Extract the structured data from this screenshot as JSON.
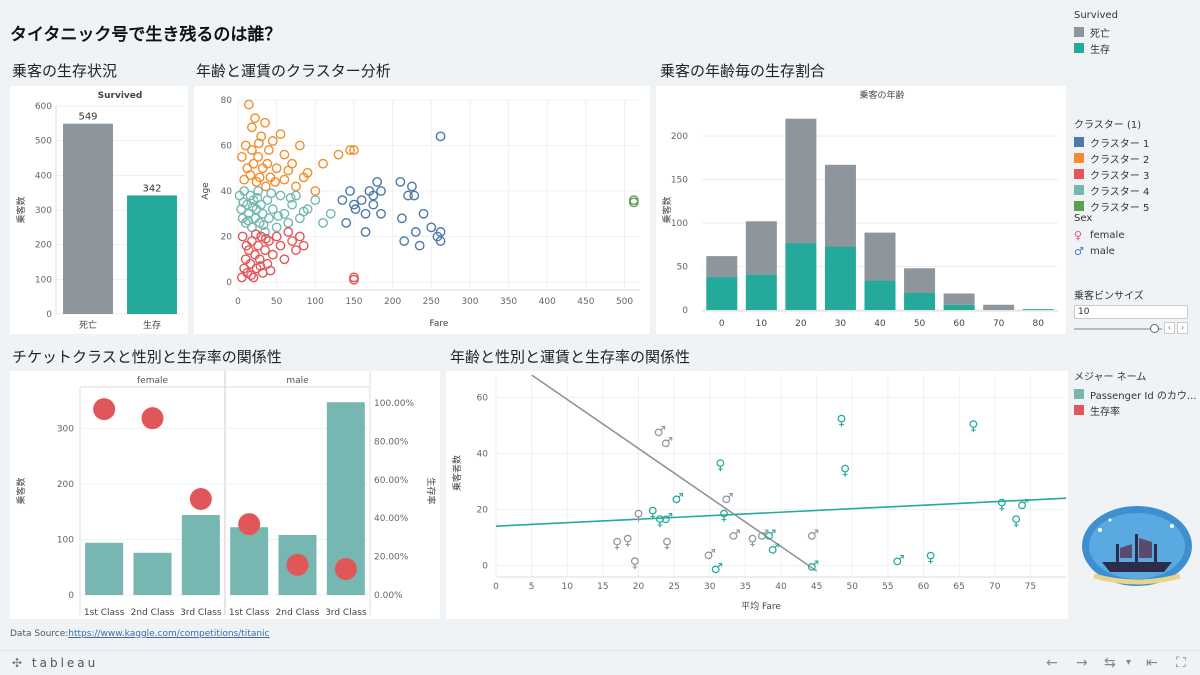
{
  "page_title": "タイタニック号で生き残るのは誰？",
  "sections": {
    "survival": "乗客の生存状況",
    "cluster": "年齢と運賃のクラスター分析",
    "agehist": "乗客の年齢毎の生存割合",
    "classsex": "チケットクラスと性別と生存率の関係性",
    "agefare": "年齢と性別と運賃と生存率の関係性"
  },
  "legends": {
    "survived": {
      "title": "Survived",
      "items": [
        {
          "label": "死亡",
          "color": "#8f959c"
        },
        {
          "label": "生存",
          "color": "#24a99b"
        }
      ]
    },
    "cluster": {
      "title": "クラスター (1)",
      "items": [
        {
          "label": "クラスター 1",
          "color": "#4e79a7"
        },
        {
          "label": "クラスター 2",
          "color": "#f28e2b"
        },
        {
          "label": "クラスター 3",
          "color": "#e15759"
        },
        {
          "label": "クラスター 4",
          "color": "#76b7b2"
        },
        {
          "label": "クラスター 5",
          "color": "#59a14f"
        }
      ]
    },
    "sex": {
      "title": "Sex",
      "items": [
        {
          "label": "female",
          "icon": "female-symbol-icon"
        },
        {
          "label": "male",
          "icon": "male-symbol-icon"
        }
      ]
    },
    "bin": {
      "title": "乗客ビンサイズ",
      "value": "10",
      "slider_fraction": 0.95
    },
    "measure": {
      "title": "メジャー ネーム",
      "items": [
        {
          "label": "Passenger Id のカウ...",
          "color": "#76b7b2"
        },
        {
          "label": "生存率",
          "color": "#e15759"
        }
      ]
    }
  },
  "footer": {
    "source_label": "Data Source:",
    "source_url": "https://www.kaggle.com/competitions/titanic",
    "logo": "tableau"
  },
  "chart_data": [
    {
      "id": "survival",
      "type": "bar",
      "title": "Survived",
      "ylabel": "乗客数",
      "categories": [
        "死亡",
        "生存"
      ],
      "values": [
        549,
        342
      ],
      "colors": [
        "#8f959c",
        "#24a99b"
      ],
      "ylim": [
        0,
        600
      ],
      "yticks": [
        0,
        100,
        200,
        300,
        400,
        500,
        600
      ]
    },
    {
      "id": "cluster",
      "type": "scatter",
      "xlabel": "Fare",
      "ylabel": "Age",
      "xlim": [
        0,
        520
      ],
      "ylim": [
        0,
        80
      ],
      "xticks": [
        0,
        50,
        100,
        150,
        200,
        250,
        300,
        350,
        400,
        450,
        500
      ],
      "yticks": [
        0,
        20,
        40,
        60,
        80
      ],
      "series": [
        {
          "color": "#f28e2b",
          "points": [
            [
              10,
              60
            ],
            [
              14,
              78
            ],
            [
              18,
              68
            ],
            [
              22,
              72
            ],
            [
              26,
              55
            ],
            [
              30,
              64
            ],
            [
              35,
              70
            ],
            [
              40,
              58
            ],
            [
              45,
              62
            ],
            [
              50,
              50
            ],
            [
              55,
              65
            ],
            [
              60,
              56
            ],
            [
              70,
              52
            ],
            [
              80,
              60
            ],
            [
              90,
              48
            ],
            [
              110,
              52
            ],
            [
              130,
              56
            ],
            [
              145,
              58
            ],
            [
              150,
              58
            ],
            [
              8,
              45
            ],
            [
              12,
              50
            ],
            [
              16,
              47
            ],
            [
              20,
              52
            ],
            [
              24,
              44
            ],
            [
              28,
              46
            ],
            [
              32,
              50
            ],
            [
              36,
              42
            ],
            [
              42,
              46
            ],
            [
              48,
              44
            ],
            [
              60,
              45
            ],
            [
              75,
              42
            ],
            [
              85,
              46
            ],
            [
              100,
              40
            ],
            [
              5,
              55
            ],
            [
              18,
              58
            ],
            [
              27,
              61
            ],
            [
              38,
              52
            ],
            [
              65,
              49
            ]
          ]
        },
        {
          "color": "#76b7b2",
          "points": [
            [
              2,
              38
            ],
            [
              4,
              32
            ],
            [
              6,
              28
            ],
            [
              8,
              40
            ],
            [
              10,
              26
            ],
            [
              12,
              34
            ],
            [
              14,
              30
            ],
            [
              16,
              38
            ],
            [
              18,
              24
            ],
            [
              20,
              36
            ],
            [
              22,
              28
            ],
            [
              24,
              32
            ],
            [
              26,
              40
            ],
            [
              28,
              26
            ],
            [
              30,
              34
            ],
            [
              32,
              30
            ],
            [
              35,
              22
            ],
            [
              38,
              36
            ],
            [
              40,
              28
            ],
            [
              45,
              32
            ],
            [
              50,
              24
            ],
            [
              55,
              38
            ],
            [
              60,
              30
            ],
            [
              65,
              26
            ],
            [
              70,
              34
            ],
            [
              75,
              38
            ],
            [
              80,
              28
            ],
            [
              90,
              32
            ],
            [
              100,
              36
            ],
            [
              110,
              26
            ],
            [
              120,
              30
            ],
            [
              7,
              35
            ],
            [
              13,
              27
            ],
            [
              19,
              33
            ],
            [
              25,
              37
            ],
            [
              33,
              25
            ],
            [
              43,
              39
            ],
            [
              52,
              29
            ],
            [
              68,
              37
            ],
            [
              85,
              31
            ]
          ]
        },
        {
          "color": "#e15759",
          "points": [
            [
              5,
              2
            ],
            [
              8,
              6
            ],
            [
              10,
              10
            ],
            [
              12,
              4
            ],
            [
              14,
              14
            ],
            [
              16,
              8
            ],
            [
              18,
              18
            ],
            [
              20,
              2
            ],
            [
              22,
              12
            ],
            [
              24,
              6
            ],
            [
              26,
              16
            ],
            [
              28,
              10
            ],
            [
              30,
              20
            ],
            [
              32,
              4
            ],
            [
              35,
              14
            ],
            [
              38,
              8
            ],
            [
              40,
              18
            ],
            [
              45,
              12
            ],
            [
              50,
              20
            ],
            [
              55,
              16
            ],
            [
              60,
              10
            ],
            [
              65,
              22
            ],
            [
              70,
              18
            ],
            [
              75,
              14
            ],
            [
              80,
              20
            ],
            [
              85,
              16
            ],
            [
              150,
              2
            ],
            [
              150,
              1
            ],
            [
              6,
              20
            ],
            [
              11,
              16
            ],
            [
              17,
              3
            ],
            [
              23,
              21
            ],
            [
              29,
              7
            ],
            [
              36,
              19
            ],
            [
              42,
              5
            ]
          ]
        },
        {
          "color": "#4e79a7",
          "points": [
            [
              135,
              36
            ],
            [
              145,
              40
            ],
            [
              152,
              32
            ],
            [
              160,
              36
            ],
            [
              165,
              30
            ],
            [
              170,
              40
            ],
            [
              175,
              34
            ],
            [
              180,
              44
            ],
            [
              185,
              30
            ],
            [
              210,
              44
            ],
            [
              212,
              28
            ],
            [
              215,
              18
            ],
            [
              220,
              38
            ],
            [
              225,
              42
            ],
            [
              230,
              22
            ],
            [
              235,
              16
            ],
            [
              240,
              30
            ],
            [
              250,
              24
            ],
            [
              258,
              20
            ],
            [
              262,
              22
            ],
            [
              262,
              18
            ],
            [
              262,
              64
            ],
            [
              140,
              26
            ],
            [
              150,
              34
            ],
            [
              165,
              22
            ],
            [
              175,
              38
            ],
            [
              185,
              40
            ],
            [
              228,
              38
            ]
          ]
        },
        {
          "color": "#59a14f",
          "points": [
            [
              512,
              35
            ],
            [
              512,
              36
            ]
          ]
        }
      ]
    },
    {
      "id": "agehist",
      "type": "bar",
      "title": "乗客の年齢",
      "ylabel": "乗客数",
      "categories": [
        "0",
        "10",
        "20",
        "30",
        "40",
        "50",
        "60",
        "70",
        "80"
      ],
      "series": [
        {
          "name": "生存",
          "values": [
            38,
            41,
            77,
            73,
            34,
            20,
            6,
            0,
            1
          ],
          "color": "#24a99b"
        },
        {
          "name": "死亡",
          "values": [
            24,
            61,
            143,
            94,
            55,
            28,
            13,
            6,
            0
          ],
          "color": "#8f959c"
        }
      ],
      "ylim": [
        0,
        230
      ],
      "yticks": [
        0,
        50,
        100,
        150,
        200
      ]
    },
    {
      "id": "classsex",
      "type": "bar",
      "ylabel": "乗客数",
      "ylabel2": "生存率",
      "groups": [
        "female",
        "male"
      ],
      "categories": [
        "1st Class",
        "2nd Class",
        "3rd Class",
        "1st Class",
        "2nd Class",
        "3rd Class"
      ],
      "counts": [
        94,
        76,
        144,
        122,
        108,
        347
      ],
      "survival_rate": [
        0.968,
        0.921,
        0.5,
        0.369,
        0.157,
        0.135
      ],
      "ylim": [
        0,
        360
      ],
      "yticks": [
        0,
        100,
        200,
        300
      ],
      "y2ticks": [
        "0.00%",
        "20.00%",
        "40.00%",
        "60.00%",
        "80.00%",
        "100.00%"
      ],
      "bar_color": "#76b7b2",
      "dot_color": "#e15759"
    },
    {
      "id": "agefare",
      "type": "scatter",
      "xlabel": "平均 Fare",
      "ylabel": "乗客者数",
      "xlim": [
        0,
        80
      ],
      "ylim": [
        -2,
        68
      ],
      "xticks": [
        0,
        5,
        10,
        15,
        20,
        25,
        30,
        35,
        40,
        45,
        50,
        55,
        60,
        65,
        70,
        75
      ],
      "yticks": [
        0,
        20,
        40,
        60
      ],
      "series": [
        {
          "name": "死亡",
          "color": "#8f959c",
          "points": [
            {
              "x": 17,
              "y": 8,
              "sex": "female"
            },
            {
              "x": 18.5,
              "y": 9,
              "sex": "female"
            },
            {
              "x": 20,
              "y": 18,
              "sex": "female"
            },
            {
              "x": 19.5,
              "y": 1,
              "sex": "female"
            },
            {
              "x": 23,
              "y": 48,
              "sex": "male"
            },
            {
              "x": 24,
              "y": 44,
              "sex": "male"
            },
            {
              "x": 24,
              "y": 8,
              "sex": "female"
            },
            {
              "x": 30,
              "y": 4,
              "sex": "male"
            },
            {
              "x": 32.5,
              "y": 24,
              "sex": "male"
            },
            {
              "x": 33.5,
              "y": 11,
              "sex": "male"
            },
            {
              "x": 36,
              "y": 9,
              "sex": "female"
            },
            {
              "x": 37.5,
              "y": 11,
              "sex": "male"
            },
            {
              "x": 44.5,
              "y": 11,
              "sex": "male"
            }
          ]
        },
        {
          "name": "生存",
          "color": "#24a99b",
          "points": [
            {
              "x": 22,
              "y": 19,
              "sex": "female"
            },
            {
              "x": 23,
              "y": 16,
              "sex": "female"
            },
            {
              "x": 24,
              "y": 17,
              "sex": "male"
            },
            {
              "x": 25.5,
              "y": 24,
              "sex": "male"
            },
            {
              "x": 31,
              "y": -1,
              "sex": "male"
            },
            {
              "x": 31.5,
              "y": 36,
              "sex": "female"
            },
            {
              "x": 32,
              "y": 18,
              "sex": "female"
            },
            {
              "x": 38.5,
              "y": 11,
              "sex": "male"
            },
            {
              "x": 39,
              "y": 6,
              "sex": "male"
            },
            {
              "x": 44.5,
              "y": 0,
              "sex": "male"
            },
            {
              "x": 48.5,
              "y": 52,
              "sex": "female"
            },
            {
              "x": 49,
              "y": 34,
              "sex": "female"
            },
            {
              "x": 56.5,
              "y": 2,
              "sex": "male"
            },
            {
              "x": 61,
              "y": 3,
              "sex": "female"
            },
            {
              "x": 67,
              "y": 50,
              "sex": "female"
            },
            {
              "x": 71,
              "y": 22,
              "sex": "female"
            },
            {
              "x": 73,
              "y": 16,
              "sex": "female"
            },
            {
              "x": 74,
              "y": 22,
              "sex": "male"
            }
          ]
        }
      ],
      "trend_lines": [
        {
          "color": "#8f959c",
          "from": [
            5,
            68
          ],
          "to": [
            45,
            -2
          ]
        },
        {
          "color": "#24a99b",
          "from": [
            0,
            14
          ],
          "to": [
            80,
            24
          ]
        }
      ]
    }
  ]
}
